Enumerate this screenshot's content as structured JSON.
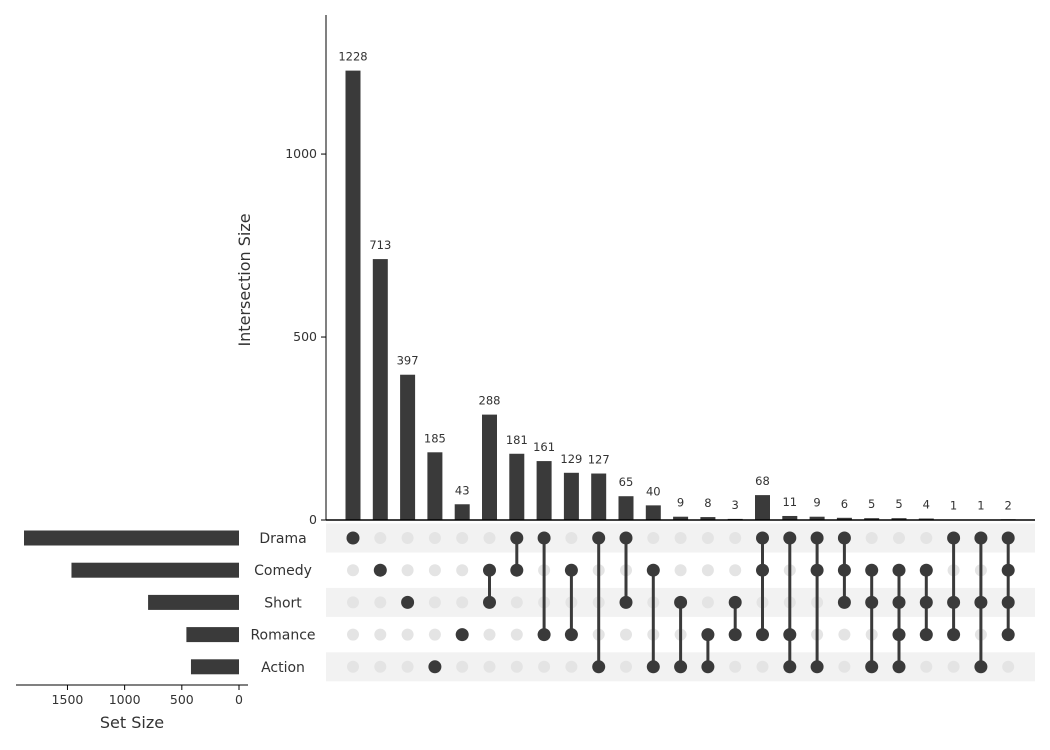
{
  "chart_data": {
    "type": "upset",
    "ylabel": "Intersection Size",
    "xlabel": "Set Size",
    "ylim": [
      0,
      1380
    ],
    "yticks": [
      0,
      500,
      1000
    ],
    "set_size_lim": [
      0,
      1950
    ],
    "set_size_ticks": [
      1500,
      1000,
      500,
      0
    ],
    "bar_color": "#3a3a3a",
    "inactive_dot_color": "#e4e4e4",
    "stripe_color": "#f2f2f2",
    "sets": [
      {
        "name": "Drama",
        "size": 1880
      },
      {
        "name": "Comedy",
        "size": 1465
      },
      {
        "name": "Short",
        "size": 795
      },
      {
        "name": "Romance",
        "size": 460
      },
      {
        "name": "Action",
        "size": 420
      }
    ],
    "intersections": [
      {
        "value": 1228,
        "label": "1228",
        "members": [
          "Drama"
        ]
      },
      {
        "value": 713,
        "label": "713",
        "members": [
          "Comedy"
        ]
      },
      {
        "value": 397,
        "label": "397",
        "members": [
          "Short"
        ]
      },
      {
        "value": 185,
        "label": "185",
        "members": [
          "Action"
        ]
      },
      {
        "value": 43,
        "label": "43",
        "members": [
          "Romance"
        ]
      },
      {
        "value": 288,
        "label": "288",
        "members": [
          "Comedy",
          "Short"
        ]
      },
      {
        "value": 181,
        "label": "181",
        "members": [
          "Drama",
          "Comedy"
        ]
      },
      {
        "value": 161,
        "label": "161",
        "members": [
          "Drama",
          "Romance"
        ]
      },
      {
        "value": 129,
        "label": "129",
        "members": [
          "Comedy",
          "Romance"
        ]
      },
      {
        "value": 127,
        "label": "127",
        "members": [
          "Drama",
          "Action"
        ]
      },
      {
        "value": 65,
        "label": "65",
        "members": [
          "Drama",
          "Short"
        ]
      },
      {
        "value": 40,
        "label": "40",
        "members": [
          "Comedy",
          "Action"
        ]
      },
      {
        "value": 9,
        "label": "9",
        "members": [
          "Short",
          "Action"
        ]
      },
      {
        "value": 8,
        "label": "8",
        "members": [
          "Romance",
          "Action"
        ]
      },
      {
        "value": 3,
        "label": "3",
        "members": [
          "Short",
          "Romance"
        ]
      },
      {
        "value": 68,
        "label": "68",
        "members": [
          "Drama",
          "Comedy",
          "Romance"
        ]
      },
      {
        "value": 11,
        "label": "11",
        "members": [
          "Drama",
          "Romance",
          "Action"
        ]
      },
      {
        "value": 9,
        "label": "9",
        "members": [
          "Drama",
          "Comedy",
          "Action"
        ]
      },
      {
        "value": 6,
        "label": "6",
        "members": [
          "Drama",
          "Comedy",
          "Short"
        ]
      },
      {
        "value": 5,
        "label": "5",
        "members": [
          "Comedy",
          "Short",
          "Action"
        ]
      },
      {
        "value": 5,
        "label": "5",
        "members": [
          "Comedy",
          "Short",
          "Romance",
          "Action"
        ]
      },
      {
        "value": 4,
        "label": "4",
        "members": [
          "Comedy",
          "Short",
          "Romance"
        ]
      },
      {
        "value": 1,
        "label": "1",
        "members": [
          "Drama",
          "Short",
          "Romance"
        ]
      },
      {
        "value": 1,
        "label": "1",
        "members": [
          "Drama",
          "Short",
          "Action"
        ]
      },
      {
        "value": 2,
        "label": "2",
        "members": [
          "Drama",
          "Comedy",
          "Short",
          "Romance"
        ]
      }
    ]
  }
}
